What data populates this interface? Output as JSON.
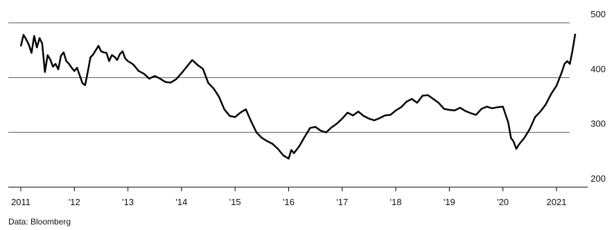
{
  "chart_data": {
    "type": "line",
    "title": "",
    "xlabel": "",
    "ylabel": "",
    "ylim": [
      200,
      500
    ],
    "yticks": [
      200,
      300,
      400,
      500
    ],
    "xlim": [
      2011,
      2022
    ],
    "xticks": [
      {
        "value": 2011,
        "label": "2011"
      },
      {
        "value": 2012,
        "label": "'12"
      },
      {
        "value": 2013,
        "label": "'13"
      },
      {
        "value": 2014,
        "label": "'14"
      },
      {
        "value": 2015,
        "label": "'15"
      },
      {
        "value": 2016,
        "label": "'16"
      },
      {
        "value": 2017,
        "label": "'17"
      },
      {
        "value": 2018,
        "label": "'18"
      },
      {
        "value": 2019,
        "label": "'19"
      },
      {
        "value": 2020,
        "label": "'20"
      },
      {
        "value": 2021,
        "label": "2021"
      }
    ],
    "grid_lines_at": [
      300,
      400,
      500
    ],
    "series": [
      {
        "color": "#000000",
        "x": [
          2011.0,
          2011.05,
          2011.1,
          2011.15,
          2011.2,
          2011.25,
          2011.3,
          2011.35,
          2011.4,
          2011.45,
          2011.5,
          2011.55,
          2011.6,
          2011.65,
          2011.7,
          2011.75,
          2011.8,
          2011.85,
          2011.9,
          2011.95,
          2012.0,
          2012.05,
          2012.1,
          2012.15,
          2012.2,
          2012.25,
          2012.3,
          2012.35,
          2012.4,
          2012.45,
          2012.5,
          2012.55,
          2012.6,
          2012.65,
          2012.7,
          2012.75,
          2012.8,
          2012.85,
          2012.9,
          2012.95,
          2013.0,
          2013.1,
          2013.2,
          2013.3,
          2013.4,
          2013.5,
          2013.6,
          2013.7,
          2013.8,
          2013.9,
          2014.0,
          2014.1,
          2014.2,
          2014.3,
          2014.4,
          2014.5,
          2014.6,
          2014.7,
          2014.8,
          2014.9,
          2015.0,
          2015.1,
          2015.2,
          2015.3,
          2015.4,
          2015.5,
          2015.6,
          2015.7,
          2015.8,
          2015.9,
          2016.0,
          2016.05,
          2016.1,
          2016.2,
          2016.3,
          2016.4,
          2016.5,
          2016.6,
          2016.7,
          2016.8,
          2016.9,
          2017.0,
          2017.1,
          2017.2,
          2017.3,
          2017.4,
          2017.5,
          2017.6,
          2017.7,
          2017.8,
          2017.9,
          2018.0,
          2018.1,
          2018.2,
          2018.3,
          2018.4,
          2018.5,
          2018.6,
          2018.7,
          2018.8,
          2018.9,
          2019.0,
          2019.1,
          2019.2,
          2019.3,
          2019.4,
          2019.5,
          2019.6,
          2019.7,
          2019.8,
          2019.9,
          2020.0,
          2020.1,
          2020.15,
          2020.2,
          2020.25,
          2020.3,
          2020.4,
          2020.5,
          2020.6,
          2020.7,
          2020.8,
          2020.9,
          2021.0,
          2021.1,
          2021.15,
          2021.2,
          2021.25,
          2021.3,
          2021.35
        ],
        "y": [
          457,
          478,
          470,
          460,
          445,
          476,
          455,
          472,
          462,
          410,
          441,
          433,
          420,
          425,
          415,
          440,
          446,
          430,
          425,
          418,
          412,
          418,
          404,
          390,
          386,
          410,
          437,
          442,
          450,
          458,
          448,
          446,
          445,
          430,
          441,
          438,
          432,
          443,
          448,
          435,
          430,
          424,
          412,
          407,
          398,
          403,
          398,
          392,
          391,
          397,
          408,
          420,
          432,
          423,
          416,
          390,
          380,
          365,
          342,
          330,
          328,
          336,
          342,
          320,
          300,
          290,
          284,
          279,
          270,
          258,
          252,
          268,
          262,
          275,
          292,
          308,
          310,
          303,
          300,
          309,
          316,
          325,
          336,
          331,
          338,
          330,
          325,
          322,
          326,
          331,
          332,
          340,
          346,
          356,
          361,
          354,
          367,
          368,
          361,
          354,
          343,
          341,
          340,
          345,
          339,
          335,
          332,
          343,
          347,
          344,
          346,
          347,
          318,
          290,
          283,
          270,
          278,
          290,
          306,
          328,
          338,
          351,
          370,
          385,
          410,
          425,
          430,
          425,
          450,
          480
        ]
      }
    ],
    "source_note": "Data: Bloomberg"
  }
}
